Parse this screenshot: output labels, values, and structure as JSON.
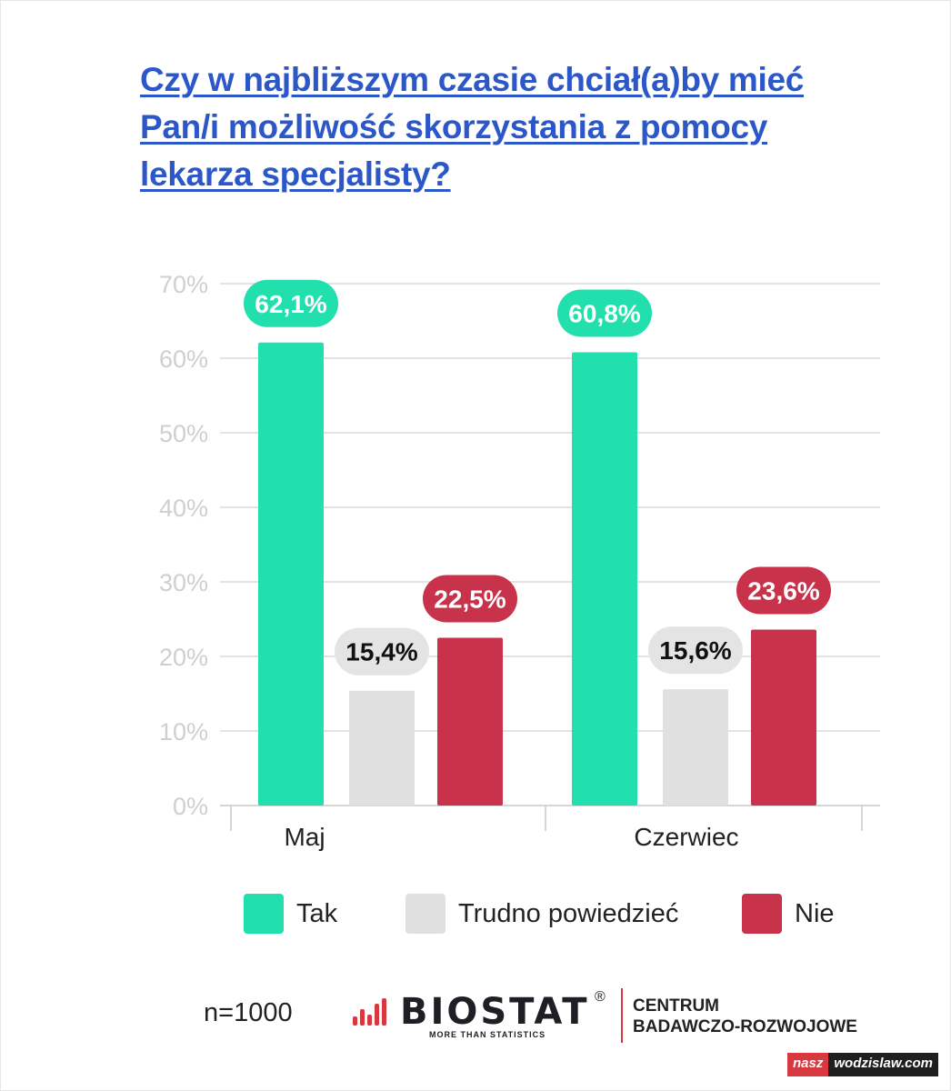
{
  "title_lines": [
    "Czy w najbliższym czasie chciał(a)by mieć",
    "Pan/i możliwość skorzystania z pomocy",
    "lekarza specjalisty?"
  ],
  "chart_data": {
    "type": "bar",
    "categories": [
      "Maj",
      "Czerwiec"
    ],
    "series": [
      {
        "name": "Tak",
        "values": [
          62.1,
          60.8
        ],
        "labels": [
          "62,1%",
          "60,8%"
        ],
        "color": "#22e0ad"
      },
      {
        "name": "Trudno powiedzieć",
        "values": [
          15.4,
          15.6
        ],
        "labels": [
          "15,4%",
          "15,6%"
        ],
        "color": "#e0e0e0"
      },
      {
        "name": "Nie",
        "values": [
          22.5,
          23.6
        ],
        "labels": [
          "22,5%",
          "23,6%"
        ],
        "color": "#c8324a"
      }
    ],
    "yticks": [
      "0%",
      "10%",
      "20%",
      "30%",
      "40%",
      "50%",
      "60%",
      "70%"
    ],
    "ylim": [
      0,
      70
    ],
    "grid": true,
    "legend_position": "bottom"
  },
  "legend": {
    "items": [
      {
        "label": "Tak",
        "color": "#22e0ad"
      },
      {
        "label": "Trudno powiedzieć",
        "color": "#e0e0e0"
      },
      {
        "label": "Nie",
        "color": "#c8324a"
      }
    ]
  },
  "footer": {
    "sample": "n=1000",
    "brand": "BIOSTAT",
    "brand_reg": "®",
    "brand_tagline": "MORE THAN STATISTICS",
    "centre_lines": [
      "CENTRUM",
      "BADAWCZO-ROZWOJOWE"
    ],
    "watermark_a": "nasz",
    "watermark_b": "wodzislaw.com"
  }
}
